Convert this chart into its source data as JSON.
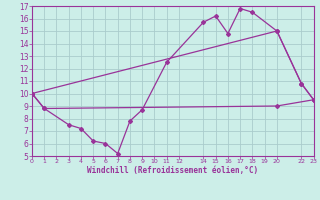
{
  "xlabel": "Windchill (Refroidissement éolien,°C)",
  "background_color": "#cceee8",
  "grid_color": "#aacccc",
  "line_color": "#993399",
  "line1_x": [
    0,
    1,
    3,
    4,
    5,
    6,
    7,
    8,
    9,
    11,
    14,
    15,
    16,
    17,
    18,
    20,
    22,
    23
  ],
  "line1_y": [
    10,
    8.8,
    7.5,
    7.2,
    6.2,
    6.0,
    5.2,
    7.8,
    8.7,
    12.5,
    15.7,
    16.2,
    14.8,
    16.8,
    16.5,
    15.0,
    10.8,
    9.5
  ],
  "line2_x": [
    0,
    20,
    22,
    23
  ],
  "line2_y": [
    10,
    15.0,
    10.8,
    9.5
  ],
  "line3_x": [
    0,
    1,
    20,
    23
  ],
  "line3_y": [
    10,
    8.8,
    9.0,
    9.5
  ],
  "xlim": [
    0,
    23
  ],
  "ylim": [
    5,
    17
  ],
  "yticks": [
    5,
    6,
    7,
    8,
    9,
    10,
    11,
    12,
    13,
    14,
    15,
    16,
    17
  ],
  "xticks": [
    0,
    1,
    2,
    3,
    4,
    5,
    6,
    7,
    8,
    9,
    10,
    11,
    12,
    14,
    15,
    16,
    17,
    18,
    19,
    20,
    22,
    23
  ]
}
